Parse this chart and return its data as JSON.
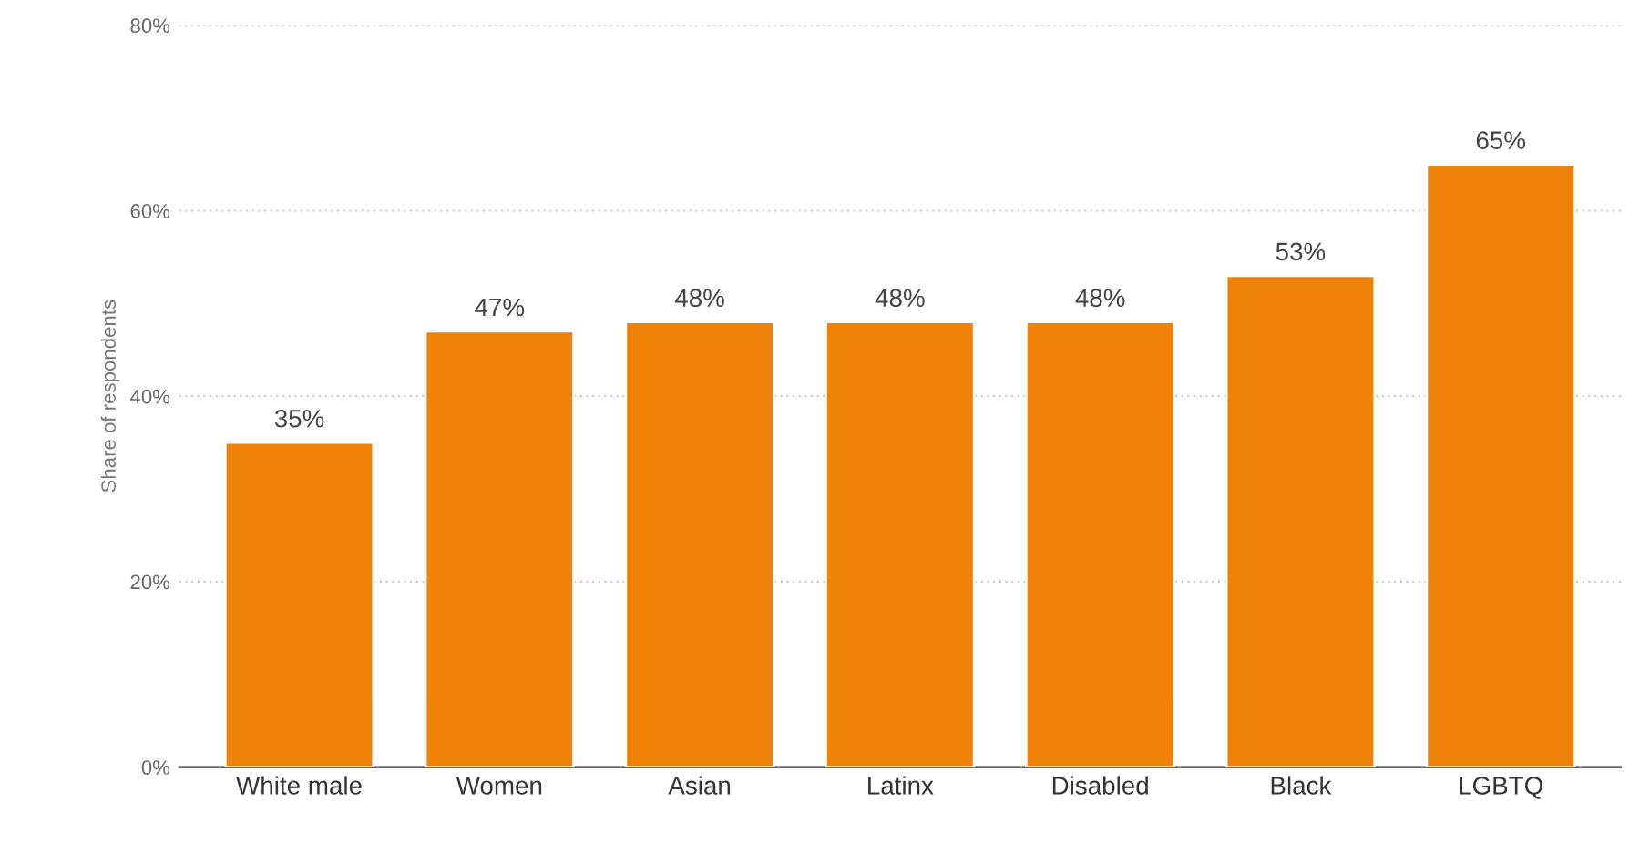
{
  "chart_data": {
    "type": "bar",
    "ylabel": "Share of respondents",
    "categories": [
      "White male",
      "Women",
      "Asian",
      "Latinx",
      "Disabled",
      "Black",
      "LGBTQ"
    ],
    "values": [
      35,
      47,
      48,
      48,
      48,
      53,
      65
    ],
    "value_labels": [
      "35%",
      "47%",
      "48%",
      "48%",
      "48%",
      "53%",
      "65%"
    ],
    "color": "#f0820a",
    "ylim": [
      0,
      80
    ],
    "yticks": [
      {
        "value": 0,
        "label": "0%"
      },
      {
        "value": 20,
        "label": "20%"
      },
      {
        "value": 40,
        "label": "40%"
      },
      {
        "value": 60,
        "label": "60%"
      },
      {
        "value": 80,
        "label": "80%"
      }
    ],
    "grid": "y",
    "legend": false
  }
}
